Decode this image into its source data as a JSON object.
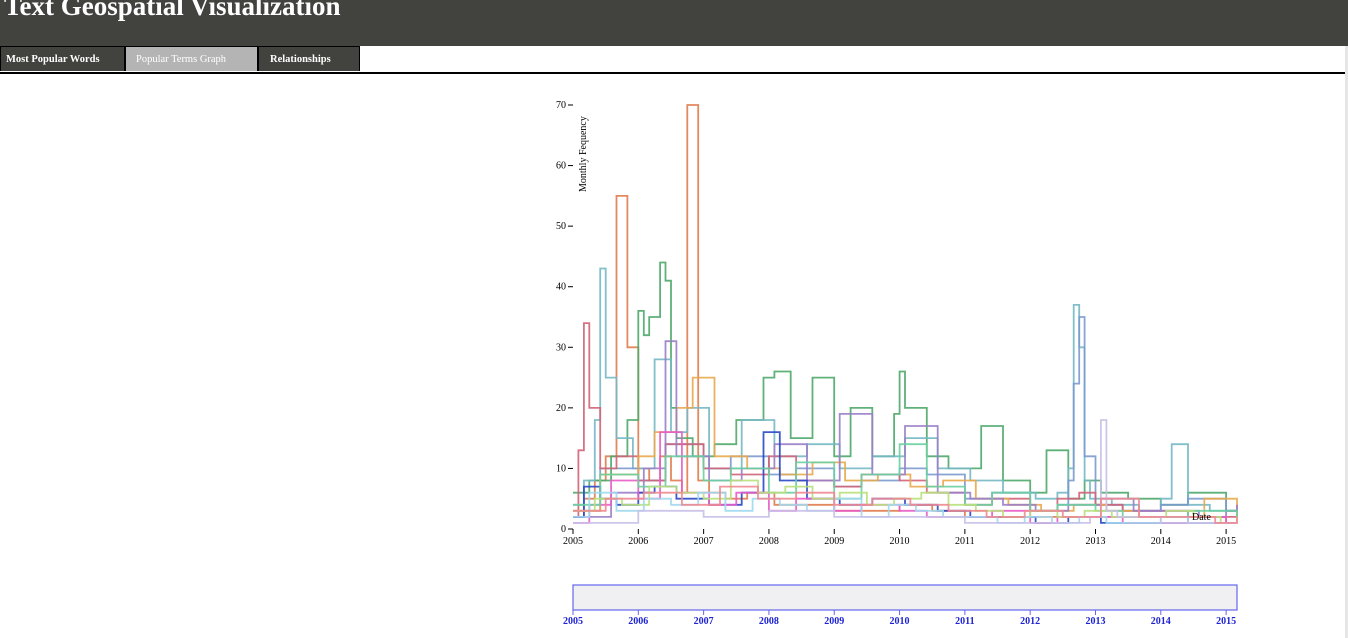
{
  "header": {
    "title": "Text Geospatial Visualization"
  },
  "tabs": [
    {
      "label": "Most Popular Words",
      "active": false
    },
    {
      "label": "Popular Terms Graph",
      "active": true
    },
    {
      "label": "Relationships",
      "active": false
    }
  ],
  "colors": {
    "header_bg": "#42423e",
    "active_tab_bg": "#b4b4b4",
    "brush_fill": "#f0f0f2",
    "brush_stroke": "#6666ee",
    "brush_text": "#1e23d2"
  },
  "chart_data": {
    "type": "line",
    "ylabel": "Monthly Fequency",
    "xlabel": "Date",
    "ylim": [
      0,
      70
    ],
    "xlim": [
      "2005-01",
      "2015-03"
    ],
    "y_ticks": [
      "0",
      "10",
      "20",
      "30",
      "40",
      "50",
      "60",
      "70"
    ],
    "x_ticks": [
      "2005",
      "2006",
      "2007",
      "2008",
      "2009",
      "2010",
      "2011",
      "2012",
      "2013",
      "2014",
      "2015"
    ],
    "series": [
      {
        "color": "#e07b4e",
        "x": [
          "2005-01",
          "2005-03",
          "2005-05",
          "2005-07",
          "2005-09",
          "2005-10",
          "2005-11",
          "2006-01",
          "2006-03",
          "2006-05",
          "2006-07",
          "2006-09",
          "2006-10",
          "2006-11",
          "2006-12",
          "2007-02",
          "2007-05",
          "2007-09",
          "2008-02",
          "2008-07",
          "2009-01",
          "2009-07",
          "2010-01",
          "2010-07",
          "2011-01",
          "2011-07",
          "2012-01",
          "2012-07",
          "2013-01",
          "2013-07",
          "2014-01",
          "2014-07",
          "2015-01",
          "2015-03"
        ],
        "y": [
          2,
          5,
          8,
          12,
          55,
          55,
          30,
          10,
          8,
          12,
          8,
          6,
          70,
          70,
          8,
          6,
          5,
          6,
          4,
          4,
          3,
          3,
          4,
          3,
          2,
          2,
          2,
          2,
          2,
          2,
          2,
          2,
          1,
          1
        ]
      },
      {
        "color": "#4ea86a",
        "x": [
          "2005-01",
          "2005-04",
          "2005-08",
          "2005-11",
          "2006-01",
          "2006-02",
          "2006-03",
          "2006-05",
          "2006-06",
          "2006-07",
          "2006-08",
          "2006-11",
          "2007-03",
          "2007-07",
          "2007-12",
          "2008-02",
          "2008-05",
          "2008-09",
          "2009-01",
          "2009-04",
          "2009-08",
          "2009-12",
          "2010-01",
          "2010-02",
          "2010-06",
          "2010-10",
          "2011-04",
          "2011-08",
          "2012-01",
          "2012-04",
          "2012-08",
          "2012-11",
          "2013-02",
          "2013-07",
          "2014-01",
          "2014-06",
          "2015-01",
          "2015-03"
        ],
        "y": [
          6,
          8,
          12,
          18,
          36,
          32,
          35,
          44,
          41,
          20,
          15,
          12,
          14,
          18,
          25,
          26,
          15,
          25,
          12,
          20,
          12,
          19,
          26,
          20,
          12,
          10,
          17,
          8,
          6,
          13,
          5,
          8,
          6,
          5,
          4,
          6,
          3,
          3
        ]
      },
      {
        "color": "#74b8c4",
        "x": [
          "2005-01",
          "2005-03",
          "2005-05",
          "2005-06",
          "2005-07",
          "2005-09",
          "2005-12",
          "2006-04",
          "2006-07",
          "2006-10",
          "2007-02",
          "2007-08",
          "2008-02",
          "2008-08",
          "2009-02",
          "2009-08",
          "2010-02",
          "2010-08",
          "2011-02",
          "2011-08",
          "2012-02",
          "2012-06",
          "2012-08",
          "2012-09",
          "2012-10",
          "2012-11",
          "2012-12",
          "2013-04",
          "2013-09",
          "2014-01",
          "2014-03",
          "2014-06",
          "2014-10",
          "2015-03"
        ],
        "y": [
          4,
          8,
          18,
          43,
          25,
          15,
          10,
          28,
          16,
          20,
          10,
          18,
          12,
          14,
          10,
          12,
          15,
          10,
          8,
          6,
          5,
          6,
          10,
          37,
          30,
          8,
          5,
          4,
          3,
          5,
          14,
          4,
          3,
          2
        ]
      },
      {
        "color": "#7a9ad0",
        "x": [
          "2005-01",
          "2005-06",
          "2006-01",
          "2006-06",
          "2007-01",
          "2007-06",
          "2008-01",
          "2008-06",
          "2009-01",
          "2009-06",
          "2010-01",
          "2010-06",
          "2011-01",
          "2011-06",
          "2012-01",
          "2012-06",
          "2012-08",
          "2012-09",
          "2012-10",
          "2012-11",
          "2013-01",
          "2013-06",
          "2014-01",
          "2014-06",
          "2015-01",
          "2015-03"
        ],
        "y": [
          3,
          10,
          8,
          14,
          10,
          12,
          9,
          10,
          7,
          8,
          10,
          9,
          5,
          6,
          3,
          4,
          8,
          24,
          35,
          12,
          4,
          3,
          4,
          5,
          3,
          4
        ]
      },
      {
        "color": "#d06478",
        "x": [
          "2005-01",
          "2005-02",
          "2005-03",
          "2005-04",
          "2005-06",
          "2005-09",
          "2006-01",
          "2006-06",
          "2007-01",
          "2007-06",
          "2008-01",
          "2008-06",
          "2009-01",
          "2009-06",
          "2010-01",
          "2010-06",
          "2011-01",
          "2011-06",
          "2012-01",
          "2012-06",
          "2012-10",
          "2013-01",
          "2013-06",
          "2014-01",
          "2014-06",
          "2015-01",
          "2015-03"
        ],
        "y": [
          2,
          13,
          34,
          20,
          10,
          12,
          8,
          14,
          10,
          9,
          12,
          8,
          7,
          9,
          8,
          6,
          4,
          5,
          3,
          5,
          6,
          4,
          3,
          3,
          2,
          2,
          2
        ]
      },
      {
        "color": "#e8a84e",
        "x": [
          "2005-01",
          "2005-06",
          "2006-01",
          "2006-04",
          "2006-08",
          "2006-11",
          "2007-03",
          "2007-09",
          "2008-03",
          "2008-09",
          "2009-03",
          "2009-09",
          "2010-03",
          "2010-09",
          "2011-03",
          "2011-09",
          "2012-03",
          "2012-09",
          "2013-03",
          "2013-09",
          "2014-03",
          "2014-09",
          "2015-03"
        ],
        "y": [
          3,
          9,
          12,
          16,
          20,
          25,
          12,
          10,
          9,
          11,
          8,
          9,
          7,
          8,
          5,
          4,
          3,
          4,
          3,
          2,
          2,
          5,
          2
        ]
      },
      {
        "color": "#9a7ec8",
        "x": [
          "2005-01",
          "2005-08",
          "2006-02",
          "2006-06",
          "2006-08",
          "2007-02",
          "2007-08",
          "2008-02",
          "2008-08",
          "2009-02",
          "2009-08",
          "2010-02",
          "2010-08",
          "2011-02",
          "2011-08",
          "2012-02",
          "2012-08",
          "2013-02",
          "2013-08",
          "2014-02",
          "2014-08",
          "2015-01",
          "2015-03"
        ],
        "y": [
          2,
          6,
          10,
          31,
          12,
          8,
          10,
          14,
          8,
          19,
          9,
          17,
          6,
          5,
          4,
          3,
          4,
          5,
          3,
          3,
          2,
          3,
          4
        ]
      },
      {
        "color": "#2848c8",
        "x": [
          "2005-01",
          "2005-03",
          "2005-06",
          "2005-09",
          "2006-01",
          "2006-04",
          "2006-08",
          "2007-02",
          "2007-08",
          "2007-12",
          "2008-03",
          "2008-08",
          "2009-02",
          "2009-08",
          "2010-02",
          "2010-08",
          "2011-02",
          "2011-08",
          "2012-02",
          "2012-08",
          "2013-02",
          "2013-08",
          "2014-02",
          "2014-08",
          "2015-03"
        ],
        "y": [
          2,
          7,
          5,
          4,
          6,
          7,
          5,
          4,
          6,
          16,
          8,
          5,
          4,
          5,
          4,
          3,
          2,
          2,
          1,
          2,
          1,
          1,
          1,
          1,
          1
        ]
      },
      {
        "color": "#e85cc8",
        "x": [
          "2005-01",
          "2005-04",
          "2005-08",
          "2006-01",
          "2006-05",
          "2006-09",
          "2007-02",
          "2007-07",
          "2008-01",
          "2008-06",
          "2009-01",
          "2009-06",
          "2010-01",
          "2010-06",
          "2011-01",
          "2011-06",
          "2012-01",
          "2012-06",
          "2013-01",
          "2013-06",
          "2014-01",
          "2014-06",
          "2015-01",
          "2015-03"
        ],
        "y": [
          1,
          4,
          8,
          5,
          16,
          6,
          4,
          6,
          3,
          5,
          3,
          4,
          3,
          2,
          2,
          3,
          1,
          2,
          2,
          1,
          1,
          2,
          1,
          1
        ]
      },
      {
        "color": "#6ad0a0",
        "x": [
          "2005-01",
          "2005-06",
          "2006-01",
          "2006-06",
          "2007-01",
          "2007-06",
          "2008-01",
          "2008-06",
          "2009-01",
          "2009-06",
          "2010-01",
          "2010-06",
          "2011-01",
          "2011-06",
          "2012-01",
          "2012-06",
          "2013-01",
          "2013-06",
          "2014-01",
          "2014-06",
          "2015-03"
        ],
        "y": [
          4,
          9,
          7,
          12,
          8,
          10,
          6,
          11,
          5,
          9,
          14,
          7,
          4,
          6,
          3,
          4,
          3,
          2,
          2,
          3,
          2
        ]
      },
      {
        "color": "#b8e07c",
        "x": [
          "2005-01",
          "2005-05",
          "2005-10",
          "2006-03",
          "2006-08",
          "2007-01",
          "2007-06",
          "2007-11",
          "2008-04",
          "2008-09",
          "2009-02",
          "2009-07",
          "2009-12",
          "2010-05",
          "2010-10",
          "2011-03",
          "2011-08",
          "2012-01",
          "2012-06",
          "2012-11",
          "2013-04",
          "2013-09",
          "2014-02",
          "2014-07",
          "2014-12",
          "2015-03"
        ],
        "y": [
          3,
          5,
          4,
          7,
          6,
          5,
          8,
          6,
          7,
          5,
          6,
          4,
          5,
          6,
          4,
          3,
          2,
          3,
          2,
          3,
          2,
          2,
          3,
          2,
          1,
          2
        ]
      },
      {
        "color": "#a0d8f0",
        "x": [
          "2005-01",
          "2005-04",
          "2005-09",
          "2006-02",
          "2006-07",
          "2006-12",
          "2007-05",
          "2007-10",
          "2008-03",
          "2008-08",
          "2009-01",
          "2009-06",
          "2009-11",
          "2010-04",
          "2010-09",
          "2011-02",
          "2011-07",
          "2011-12",
          "2012-05",
          "2012-10",
          "2013-03",
          "2013-08",
          "2014-01",
          "2014-06",
          "2014-11",
          "2015-03"
        ],
        "y": [
          2,
          6,
          3,
          5,
          4,
          6,
          3,
          5,
          4,
          3,
          5,
          2,
          4,
          3,
          2,
          2,
          1,
          2,
          1,
          2,
          1,
          1,
          2,
          1,
          1,
          1
        ]
      },
      {
        "color": "#c8c0e8",
        "x": [
          "2005-01",
          "2006-01",
          "2007-01",
          "2008-01",
          "2009-01",
          "2010-01",
          "2011-01",
          "2012-01",
          "2012-12",
          "2013-02",
          "2013-03",
          "2013-05",
          "2014-01",
          "2015-03"
        ],
        "y": [
          1,
          3,
          2,
          3,
          2,
          2,
          1,
          1,
          2,
          18,
          3,
          2,
          1,
          1
        ]
      },
      {
        "color": "#f08890",
        "x": [
          "2005-01",
          "2005-07",
          "2006-02",
          "2006-09",
          "2007-04",
          "2007-11",
          "2008-06",
          "2009-01",
          "2009-08",
          "2010-03",
          "2010-10",
          "2011-05",
          "2011-12",
          "2012-07",
          "2013-02",
          "2013-09",
          "2014-04",
          "2014-11",
          "2015-03"
        ],
        "y": [
          3,
          5,
          6,
          4,
          7,
          5,
          6,
          4,
          5,
          4,
          3,
          2,
          3,
          2,
          5,
          2,
          2,
          1,
          2
        ]
      }
    ]
  }
}
